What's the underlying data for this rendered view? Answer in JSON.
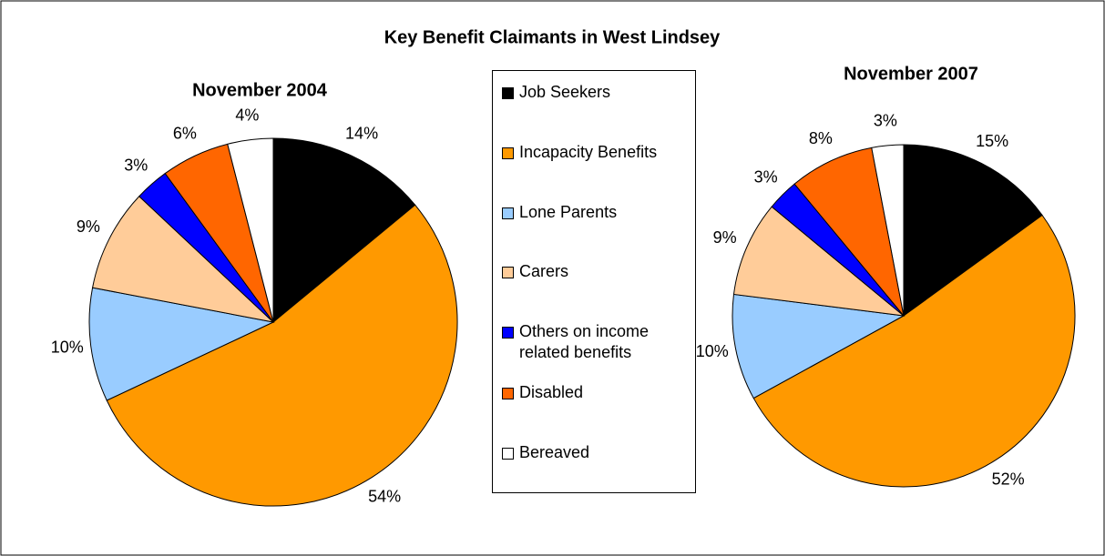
{
  "title": "Key Benefit Claimants in West Lindsey",
  "chart_data": [
    {
      "type": "pie",
      "title": "November 2004",
      "categories": [
        "Job Seekers",
        "Incapacity Benefits",
        "Lone Parents",
        "Carers",
        "Others on income related benefits",
        "Disabled",
        "Bereaved"
      ],
      "values": [
        14,
        54,
        10,
        9,
        3,
        6,
        4
      ],
      "value_labels": [
        "14%",
        "54%",
        "10%",
        "9%",
        "3%",
        "6%",
        "4%"
      ],
      "colors": [
        "#000000",
        "#ff9900",
        "#99ccff",
        "#ffcc99",
        "#0000ff",
        "#ff6600",
        "#ffffff"
      ]
    },
    {
      "type": "pie",
      "title": "November 2007",
      "categories": [
        "Job Seekers",
        "Incapacity Benefits",
        "Lone Parents",
        "Carers",
        "Others on income related benefits",
        "Disabled",
        "Bereaved"
      ],
      "values": [
        15,
        52,
        10,
        9,
        3,
        8,
        3
      ],
      "value_labels": [
        "15%",
        "52%",
        "10%",
        "9%",
        "3%",
        "8%",
        "3%"
      ],
      "colors": [
        "#000000",
        "#ff9900",
        "#99ccff",
        "#ffcc99",
        "#0000ff",
        "#ff6600",
        "#ffffff"
      ]
    }
  ]
}
